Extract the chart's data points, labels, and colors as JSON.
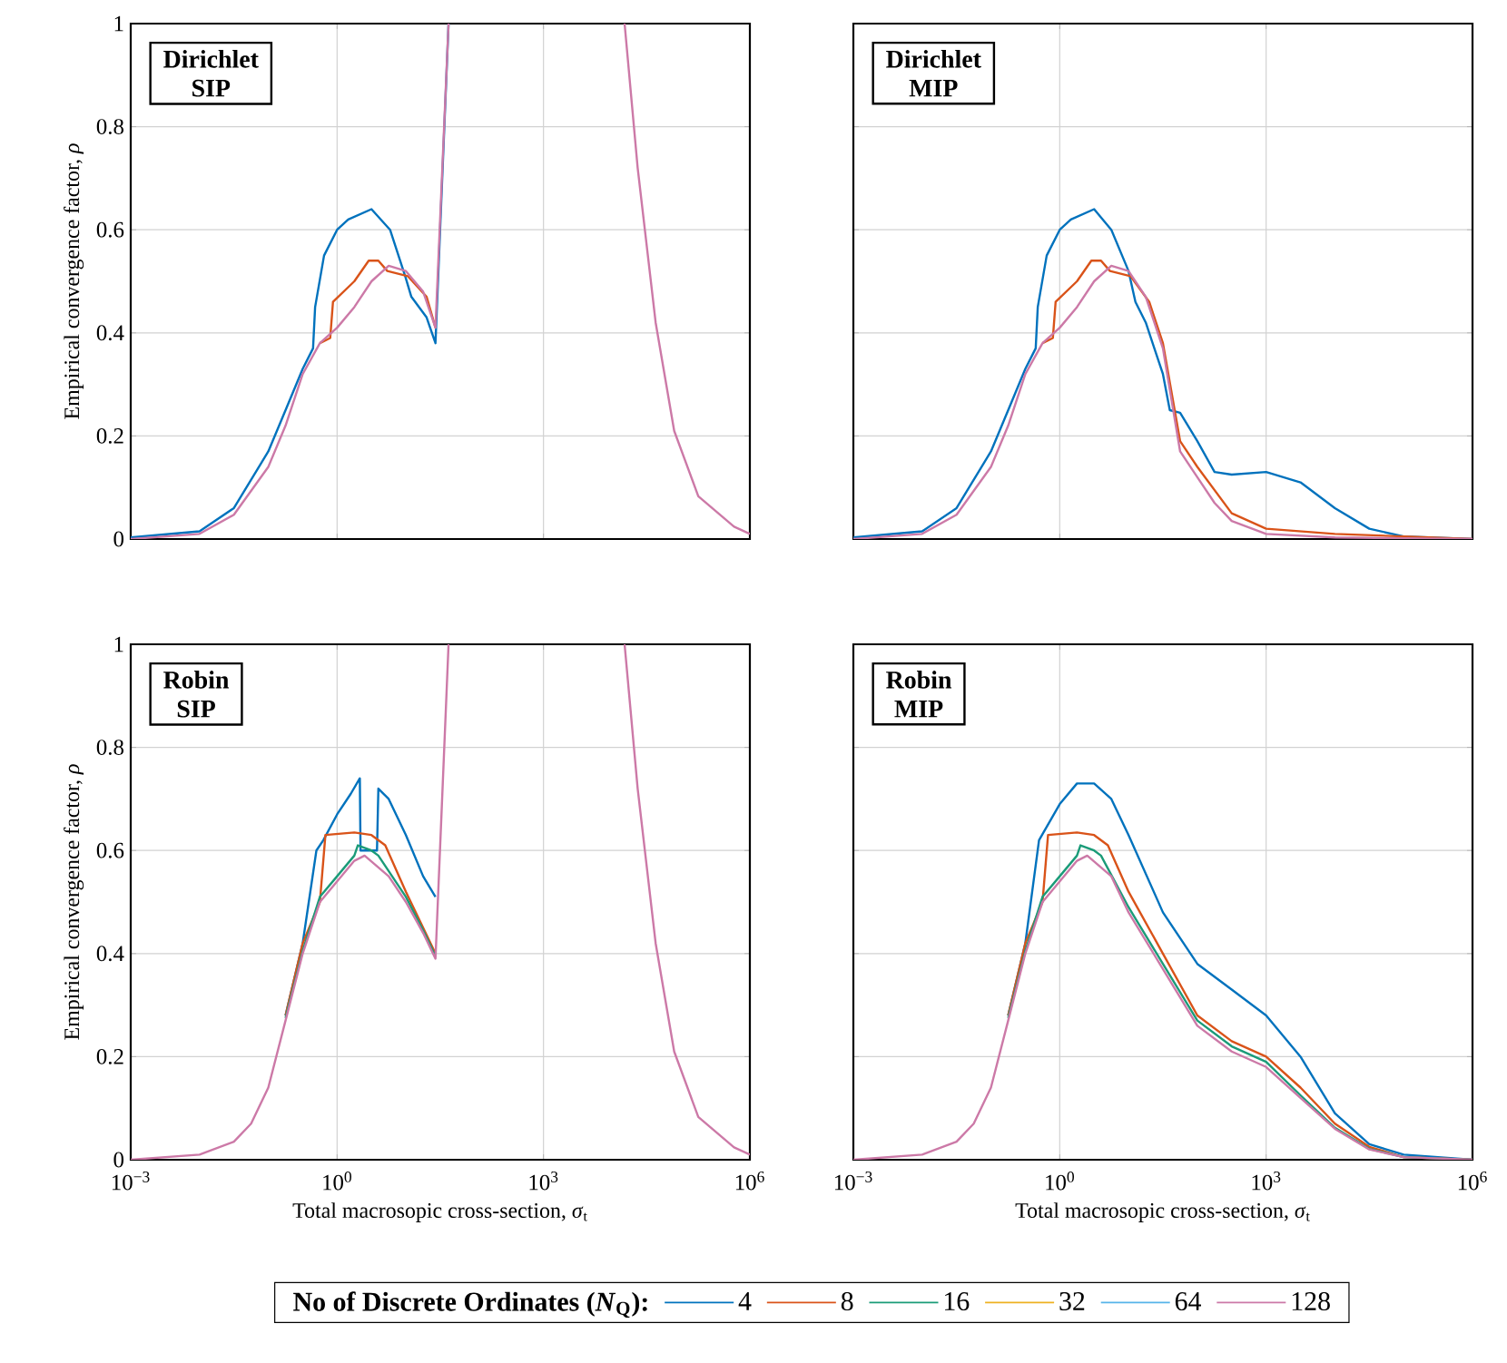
{
  "chart_data": [
    {
      "type": "line",
      "ylabel": "Empirical convergence factor, *ρ*",
      "annotations": [
        "Dirichlet",
        "SIP"
      ],
      "log": "x",
      "grid": true,
      "tick_labels": "y",
      "xlim": [
        0.001,
        1000000
      ],
      "ylim": [
        0,
        1
      ],
      "xticks": [
        {
          "value": 0.001,
          "label": null
        },
        {
          "value": 1,
          "label": null
        },
        {
          "value": 1000,
          "label": null
        },
        {
          "value": 1000000,
          "label": null
        }
      ],
      "yticks": [
        0,
        0.2,
        0.4,
        0.6,
        0.8,
        1
      ],
      "series": [
        {
          "color": "#0072bd",
          "x": [
            0.001,
            0.01,
            0.0316,
            0.1,
            0.178,
            0.316,
            0.447,
            0.479,
            0.646,
            1,
            1.45,
            3.16,
            5.89,
            9.77,
            12,
            20,
            26.9,
            41.7
          ],
          "values": [
            0.003,
            0.015,
            0.06,
            0.17,
            0.25,
            0.33,
            0.37,
            0.45,
            0.55,
            0.6,
            0.62,
            0.64,
            0.6,
            0.51,
            0.47,
            0.43,
            0.38,
            1
          ]
        },
        {
          "color": "#d95319",
          "x": [
            0.562,
            0.794,
            0.871,
            1.78,
            2.88,
            3.98,
            5.37,
            10.7,
            20,
            26.9
          ],
          "values": [
            0.38,
            0.39,
            0.46,
            0.5,
            0.54,
            0.54,
            0.52,
            0.51,
            0.47,
            0.41
          ]
        },
        {
          "color": "#1a9b78"
        },
        {
          "color": "#edb120"
        },
        {
          "color": "#56b4e9"
        },
        {
          "color": "#cc79a7",
          "x": [
            0.001,
            0.01,
            0.0316,
            0.1,
            0.178,
            0.316,
            0.562,
            1,
            1.78,
            3.16,
            5.62,
            10,
            17.8,
            26.9,
            41.7,
            1000,
            15100,
            23400,
            42700,
            79400,
            178000,
            589000,
            1000000
          ],
          "values": [
            0,
            0.01,
            0.047,
            0.14,
            0.22,
            0.32,
            0.38,
            0.41,
            0.45,
            0.5,
            0.53,
            0.52,
            0.48,
            0.41,
            1,
            null,
            1,
            0.72,
            0.42,
            0.21,
            0.083,
            0.024,
            0.01
          ]
        }
      ]
    },
    {
      "type": "line",
      "annotations": [
        "Dirichlet",
        "MIP"
      ],
      "log": "x",
      "grid": true,
      "tick_labels": false,
      "xlim": [
        0.001,
        1000000
      ],
      "ylim": [
        0,
        1
      ],
      "xticks": [
        {
          "value": 0.001,
          "label": null
        },
        {
          "value": 1,
          "label": null
        },
        {
          "value": 1000,
          "label": null
        },
        {
          "value": 1000000,
          "label": null
        }
      ],
      "yticks": [
        0,
        0.2,
        0.4,
        0.6,
        0.8,
        1
      ],
      "series": [
        {
          "color": "#0072bd",
          "x": [
            0.001,
            0.01,
            0.0316,
            0.1,
            0.178,
            0.316,
            0.447,
            0.479,
            0.646,
            1,
            1.45,
            3.16,
            5.62,
            10,
            12.6,
            17.8,
            31.6,
            39.8,
            56.2,
            100,
            178,
            316,
            1000,
            3160,
            10000,
            31600,
            100000,
            1000000
          ],
          "values": [
            0.003,
            0.015,
            0.06,
            0.17,
            0.25,
            0.33,
            0.37,
            0.45,
            0.55,
            0.6,
            0.62,
            0.64,
            0.6,
            0.52,
            0.46,
            0.42,
            0.32,
            0.25,
            0.245,
            0.19,
            0.13,
            0.125,
            0.13,
            0.11,
            0.06,
            0.02,
            0.005,
            0
          ]
        },
        {
          "color": "#d95319",
          "x": [
            0.562,
            0.794,
            0.871,
            1.78,
            2.88,
            3.98,
            5.37,
            10.7,
            20,
            31.6,
            56.2,
            100,
            316,
            1000,
            10000,
            100000,
            1000000
          ],
          "values": [
            0.38,
            0.39,
            0.46,
            0.5,
            0.54,
            0.54,
            0.52,
            0.51,
            0.46,
            0.38,
            0.19,
            0.14,
            0.05,
            0.02,
            0.01,
            0.005,
            0
          ]
        },
        {
          "color": "#1a9b78"
        },
        {
          "color": "#edb120"
        },
        {
          "color": "#56b4e9"
        },
        {
          "color": "#cc79a7",
          "x": [
            0.001,
            0.01,
            0.0316,
            0.1,
            0.178,
            0.316,
            0.562,
            1,
            1.78,
            3.16,
            5.62,
            10,
            17.8,
            31.6,
            56.2,
            100,
            178,
            316,
            1000,
            10000,
            1000000
          ],
          "values": [
            0,
            0.01,
            0.047,
            0.14,
            0.22,
            0.32,
            0.38,
            0.41,
            0.45,
            0.5,
            0.53,
            0.52,
            0.47,
            0.37,
            0.17,
            0.12,
            0.07,
            0.035,
            0.01,
            0.003,
            0
          ]
        }
      ]
    },
    {
      "type": "line",
      "xlabel": "Total macrosopic cross-section, *σ*$_{t}$",
      "ylabel": "Empirical convergence factor, *ρ*",
      "annotations": [
        "Robin",
        "SIP"
      ],
      "log": "x",
      "grid": true,
      "xlim": [
        0.001,
        1000000
      ],
      "ylim": [
        0,
        1
      ],
      "xticks": [
        {
          "value": 0.001,
          "label": "10$^{−3}$"
        },
        {
          "value": 1,
          "label": "10$^{0}$"
        },
        {
          "value": 1000,
          "label": "10$^{3}$"
        },
        {
          "value": 1000000,
          "label": "10$^{6}$"
        }
      ],
      "yticks": [
        0,
        0.2,
        0.4,
        0.6,
        0.8,
        1
      ],
      "series": [
        {
          "color": "#0072bd",
          "x": [
            0.178,
            0.316,
            0.5,
            0.631,
            1,
            1.58,
            2.14,
            2.19,
            3.8,
            3.98,
            5.62,
            10,
            17.8,
            26.9
          ],
          "values": [
            0.28,
            0.42,
            0.6,
            0.62,
            0.67,
            0.71,
            0.74,
            0.6,
            0.6,
            0.72,
            0.7,
            0.63,
            0.55,
            0.51
          ]
        },
        {
          "color": "#d95319",
          "x": [
            0.178,
            0.316,
            0.562,
            0.676,
            1.78,
            3.16,
            5.01,
            10,
            26.9
          ],
          "values": [
            0.28,
            0.42,
            0.5,
            0.63,
            0.635,
            0.63,
            0.61,
            0.52,
            0.4
          ]
        },
        {
          "color": "#1a9b78",
          "x": [
            0.178,
            0.316,
            0.562,
            1,
            1.78,
            2,
            3.16,
            3.98,
            10,
            17.8,
            26.9
          ],
          "values": [
            0.275,
            0.405,
            0.51,
            0.55,
            0.59,
            0.61,
            0.6,
            0.59,
            0.51,
            0.445,
            0.395
          ]
        },
        {
          "color": "#edb120"
        },
        {
          "color": "#56b4e9"
        },
        {
          "color": "#cc79a7",
          "x": [
            0.001,
            0.01,
            0.0316,
            0.0562,
            0.1,
            0.178,
            0.316,
            0.562,
            1,
            1.78,
            2.51,
            5.62,
            10,
            17.8,
            26.9,
            41.7,
            1000,
            15100,
            23400,
            42700,
            79400,
            178000,
            589000,
            1000000
          ],
          "values": [
            0,
            0.01,
            0.035,
            0.07,
            0.14,
            0.27,
            0.4,
            0.5,
            0.54,
            0.58,
            0.59,
            0.55,
            0.5,
            0.44,
            0.39,
            1,
            null,
            1,
            0.72,
            0.42,
            0.21,
            0.083,
            0.024,
            0.01
          ]
        }
      ]
    },
    {
      "type": "line",
      "xlabel": "Total macrosopic cross-section, *σ*$_{t}$",
      "annotations": [
        "Robin",
        "MIP"
      ],
      "log": "x",
      "grid": true,
      "tick_labels": "x",
      "legend": "bottom",
      "legend_title": "No of Discrete Ordinates (*N*$_{Q}$):",
      "xlim": [
        0.001,
        1000000
      ],
      "ylim": [
        0,
        1
      ],
      "xticks": [
        {
          "value": 0.001,
          "label": "10$^{−3}$"
        },
        {
          "value": 1,
          "label": "10$^{0}$"
        },
        {
          "value": 1000,
          "label": "10$^{3}$"
        },
        {
          "value": 1000000,
          "label": "10$^{6}$"
        }
      ],
      "yticks": [
        0,
        0.2,
        0.4,
        0.6,
        0.8,
        1
      ],
      "series": [
        {
          "name": "4",
          "color": "#0072bd",
          "x": [
            0.178,
            0.316,
            0.5,
            1,
            1.78,
            3.16,
            5.62,
            10,
            31.6,
            100,
            316,
            1000,
            3160,
            10000,
            31600,
            100000,
            1000000
          ],
          "values": [
            0.28,
            0.42,
            0.62,
            0.69,
            0.73,
            0.73,
            0.7,
            0.63,
            0.48,
            0.38,
            0.33,
            0.28,
            0.2,
            0.09,
            0.03,
            0.01,
            0
          ]
        },
        {
          "name": "8",
          "color": "#d95319",
          "x": [
            0.178,
            0.316,
            0.562,
            0.676,
            1.78,
            3.16,
            5.01,
            10,
            31.6,
            100,
            316,
            1000,
            3160,
            10000,
            31600,
            100000,
            1000000
          ],
          "values": [
            0.28,
            0.42,
            0.5,
            0.63,
            0.635,
            0.63,
            0.61,
            0.52,
            0.4,
            0.28,
            0.23,
            0.2,
            0.14,
            0.07,
            0.025,
            0.005,
            0
          ]
        },
        {
          "name": "16",
          "color": "#1a9b78",
          "x": [
            0.178,
            0.316,
            0.562,
            1,
            1.78,
            2,
            3.16,
            3.98,
            10,
            31.6,
            100,
            316,
            1000,
            3160,
            10000,
            31600,
            100000,
            1000000
          ],
          "values": [
            0.275,
            0.405,
            0.51,
            0.55,
            0.59,
            0.61,
            0.6,
            0.59,
            0.49,
            0.38,
            0.27,
            0.22,
            0.19,
            0.125,
            0.062,
            0.021,
            0.005,
            0
          ]
        },
        {
          "name": "32",
          "color": "#edb120"
        },
        {
          "name": "64",
          "color": "#56b4e9"
        },
        {
          "name": "128",
          "color": "#cc79a7",
          "x": [
            0.001,
            0.01,
            0.0316,
            0.0562,
            0.1,
            0.178,
            0.316,
            0.562,
            1,
            1.78,
            2.51,
            5.62,
            10,
            31.6,
            100,
            316,
            1000,
            3160,
            10000,
            31600,
            100000,
            1000000
          ],
          "values": [
            0,
            0.01,
            0.035,
            0.07,
            0.14,
            0.27,
            0.4,
            0.5,
            0.54,
            0.58,
            0.59,
            0.55,
            0.48,
            0.37,
            0.26,
            0.21,
            0.18,
            0.12,
            0.06,
            0.02,
            0.005,
            0
          ]
        }
      ]
    }
  ]
}
